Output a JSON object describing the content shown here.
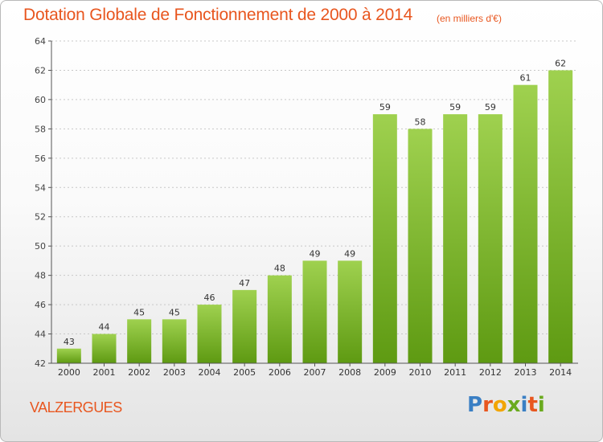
{
  "header": {
    "title": "Dotation Globale de Fonctionnement de 2000 à 2014",
    "unit": "(en milliers d'€)"
  },
  "footer": {
    "commune": "VALZERGUES",
    "logo_text": "Proxiti",
    "logo_colors": [
      "#3a7fc4",
      "#e8561f",
      "#f2a500",
      "#6aaa1e",
      "#3a7fc4",
      "#e8561f",
      "#6aaa1e"
    ]
  },
  "colors": {
    "title": "#e8561f",
    "bar_top": "#9fd14f",
    "bar_bottom": "#5e9a12",
    "axis": "#555555",
    "grid": "#c8c8c8"
  },
  "chart_data": {
    "type": "bar",
    "title": "Dotation Globale de Fonctionnement de 2000 à 2014",
    "subtitle": "(en milliers d'€)",
    "categories": [
      "2000",
      "2001",
      "2002",
      "2003",
      "2004",
      "2005",
      "2006",
      "2007",
      "2008",
      "2009",
      "2010",
      "2011",
      "2012",
      "2013",
      "2014"
    ],
    "values": [
      43,
      44,
      45,
      45,
      46,
      47,
      48,
      49,
      49,
      59,
      58,
      59,
      59,
      61,
      62
    ],
    "ylim": [
      42,
      64
    ],
    "yticks": [
      42,
      44,
      46,
      48,
      50,
      52,
      54,
      56,
      58,
      60,
      62,
      64
    ],
    "grid": true,
    "data_labels": true
  }
}
